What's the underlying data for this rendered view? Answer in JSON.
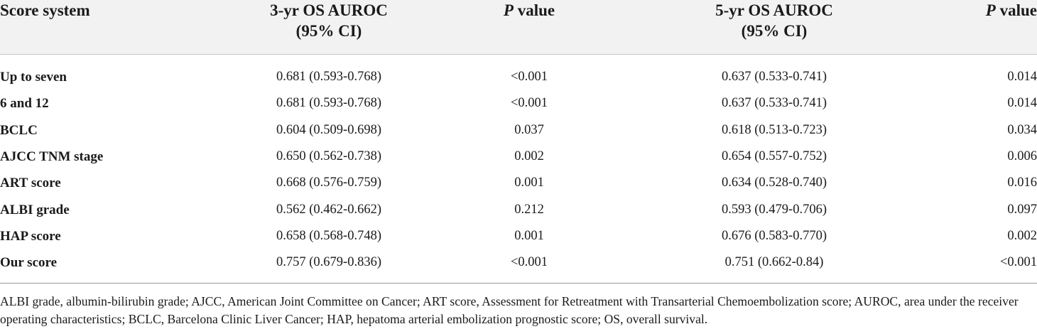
{
  "header": {
    "col0": "Score system",
    "col1_line1": "3-yr OS AUROC",
    "col1_line2": "(95% CI)",
    "col2_italic": "P",
    "col2_rest": " value",
    "col3_line1": "5-yr OS AUROC",
    "col3_line2": "(95% CI)",
    "col4_italic": "P",
    "col4_rest": " value"
  },
  "rows": [
    {
      "label": "Up to seven",
      "auroc3": "0.681 (0.593-0.768)",
      "p3": "<0.001",
      "auroc5": "0.637 (0.533-0.741)",
      "p5": "0.014"
    },
    {
      "label": "6 and 12",
      "auroc3": "0.681 (0.593-0.768)",
      "p3": "<0.001",
      "auroc5": "0.637 (0.533-0.741)",
      "p5": "0.014"
    },
    {
      "label": "BCLC",
      "auroc3": "0.604 (0.509-0.698)",
      "p3": "0.037",
      "auroc5": "0.618 (0.513-0.723)",
      "p5": "0.034"
    },
    {
      "label": "AJCC TNM stage",
      "auroc3": "0.650 (0.562-0.738)",
      "p3": "0.002",
      "auroc5": "0.654 (0.557-0.752)",
      "p5": "0.006"
    },
    {
      "label": "ART score",
      "auroc3": "0.668 (0.576-0.759)",
      "p3": "0.001",
      "auroc5": "0.634 (0.528-0.740)",
      "p5": "0.016"
    },
    {
      "label": "ALBI grade",
      "auroc3": "0.562 (0.462-0.662)",
      "p3": "0.212",
      "auroc5": "0.593 (0.479-0.706)",
      "p5": "0.097"
    },
    {
      "label": "HAP score",
      "auroc3": "0.658 (0.568-0.748)",
      "p3": "0.001",
      "auroc5": "0.676 (0.583-0.770)",
      "p5": "0.002"
    },
    {
      "label": "Our score",
      "auroc3": "0.757 (0.679-0.836)",
      "p3": "<0.001",
      "auroc5": "0.751 (0.662-0.84)",
      "p5": "<0.001"
    }
  ],
  "footnote": "ALBI grade, albumin-bilirubin grade; AJCC, American Joint Committee on Cancer; ART score, Assessment for Retreatment with Transarterial Chemoembolization score; AUROC, area under the receiver operating characteristics; BCLC, Barcelona Clinic Liver Cancer; HAP, hepatoma arterial embolization prognostic score; OS, overall survival.",
  "colors": {
    "header_bg": "#f2f2f2",
    "text": "#1a1a1a",
    "rule": "#9a9a9a"
  }
}
